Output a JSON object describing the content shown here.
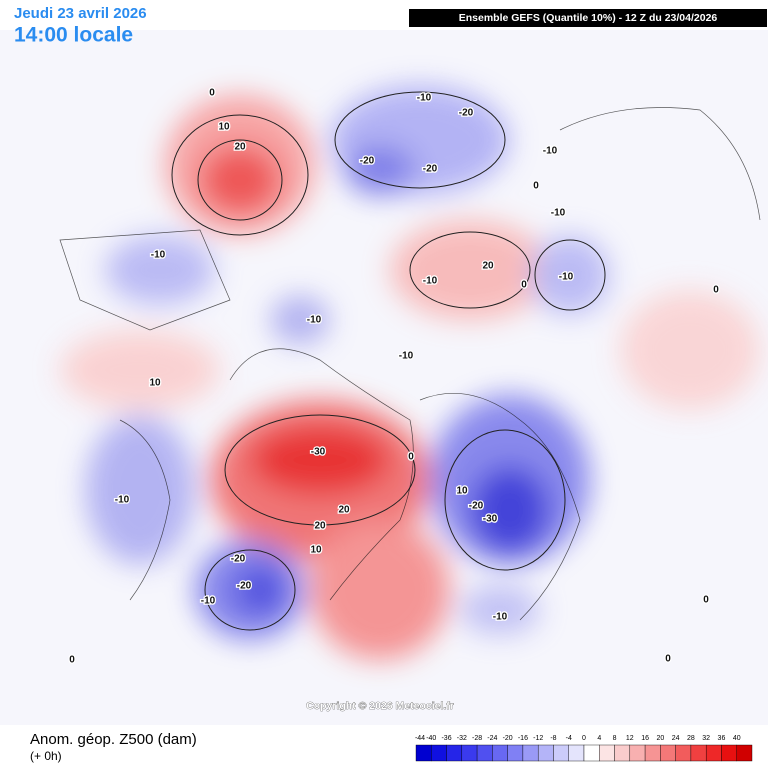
{
  "header": {
    "date": "Jeudi 23 avril 2026",
    "time": "14:00 locale",
    "run": "Ensemble GEFS  (Quantile 10%) - 12 Z du 23/04/2026"
  },
  "map": {
    "contour_labels": [
      0,
      10,
      20,
      -10,
      -20,
      -20,
      -20,
      -10,
      0,
      -10,
      -10,
      20,
      -10,
      -10,
      0,
      0,
      -10,
      -10,
      10,
      -30,
      0,
      -10,
      10,
      -20,
      -30,
      20,
      20,
      10,
      -20,
      -20,
      -10,
      0,
      -10,
      0,
      0
    ],
    "copyright": "Copyright © 2026 Meteociel.fr"
  },
  "footer": {
    "title": "Anom. géop. Z500 (dam)",
    "lead": "(+ 0h)"
  },
  "colorbar": {
    "ticks": [
      -44,
      -40,
      -36,
      -32,
      -28,
      -24,
      -20,
      -16,
      -12,
      -8,
      -4,
      0,
      4,
      8,
      12,
      16,
      20,
      24,
      28,
      32,
      36,
      40
    ],
    "colors": [
      "#0000d0",
      "#1010e0",
      "#2525e8",
      "#3a3aee",
      "#5050f0",
      "#6868f2",
      "#8080f4",
      "#9a9af6",
      "#b4b4f8",
      "#ccccfa",
      "#e4e4fc",
      "#ffffff",
      "#fce4e4",
      "#facccc",
      "#f8b0b0",
      "#f69494",
      "#f47878",
      "#f25c5c",
      "#f04040",
      "#ee2828",
      "#e81010",
      "#d00000"
    ]
  }
}
